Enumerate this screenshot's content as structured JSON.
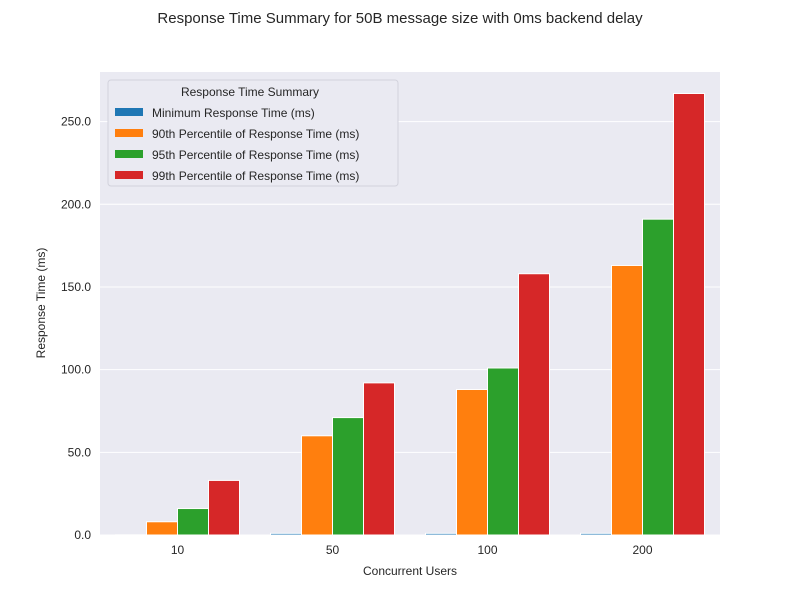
{
  "chart_data": {
    "type": "bar",
    "title": "Response Time Summary for 50B message size with 0ms backend delay",
    "xlabel": "Concurrent Users",
    "ylabel": "Response Time (ms)",
    "categories": [
      "10",
      "50",
      "100",
      "200"
    ],
    "ylim": [
      0,
      280
    ],
    "yticks": [
      "0.0",
      "50.0",
      "100.0",
      "150.0",
      "200.0",
      "250.0"
    ],
    "ytick_values": [
      0,
      50,
      100,
      150,
      200,
      250
    ],
    "legend": {
      "title": "Response Time Summary",
      "placement": "top-left"
    },
    "grid": true,
    "colors": {
      "background": "#eaeaf2",
      "grid": "#ffffff",
      "series": [
        "#1f77b4",
        "#ff7f0e",
        "#2ca02c",
        "#d62728"
      ]
    },
    "series": [
      {
        "name": "Minimum Response Time (ms)",
        "values": [
          0.1,
          1.0,
          1.0,
          1.0
        ]
      },
      {
        "name": "90th Percentile of Response Time (ms)",
        "values": [
          8.0,
          60.0,
          88.0,
          163.0
        ]
      },
      {
        "name": "95th Percentile of Response Time (ms)",
        "values": [
          16.0,
          71.0,
          101.0,
          191.0
        ]
      },
      {
        "name": "99th Percentile of Response Time (ms)",
        "values": [
          33.0,
          92.0,
          158.0,
          267.0
        ]
      }
    ]
  }
}
